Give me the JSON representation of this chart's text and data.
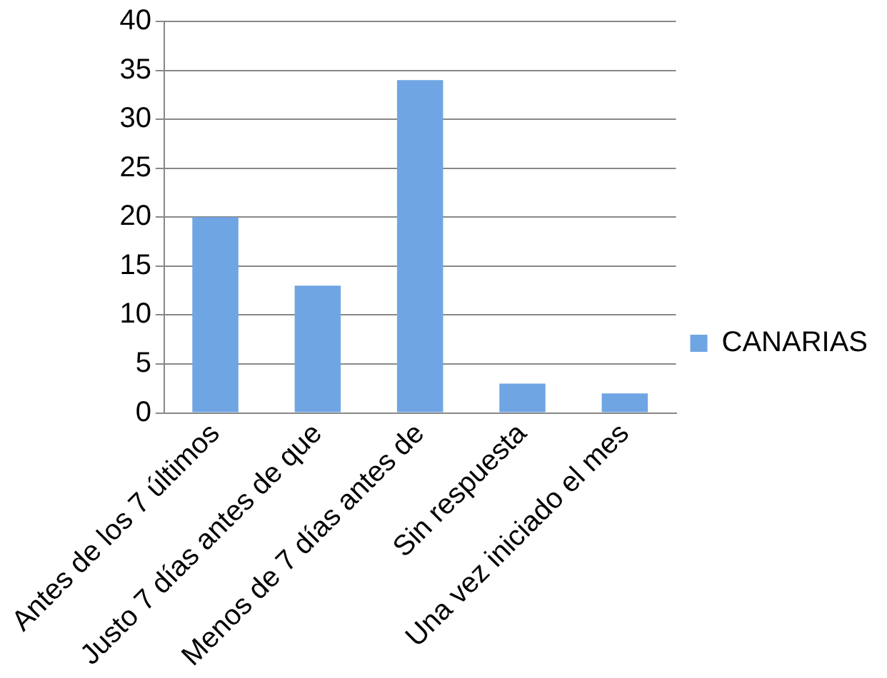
{
  "chart_data": {
    "type": "bar",
    "categories": [
      "Antes de los 7 últimos",
      "Justo 7 días antes de que",
      "Menos de 7 días antes de",
      "Sin respuesta",
      "Una vez iniciado el mes"
    ],
    "series": [
      {
        "name": "CANARIAS",
        "color": "#6fa5e3",
        "values": [
          20,
          13,
          34,
          3,
          2
        ]
      }
    ],
    "ylim": [
      0,
      40
    ],
    "yticks": [
      0,
      5,
      10,
      15,
      20,
      25,
      30,
      35,
      40
    ],
    "grid": "y",
    "legend": "right"
  }
}
